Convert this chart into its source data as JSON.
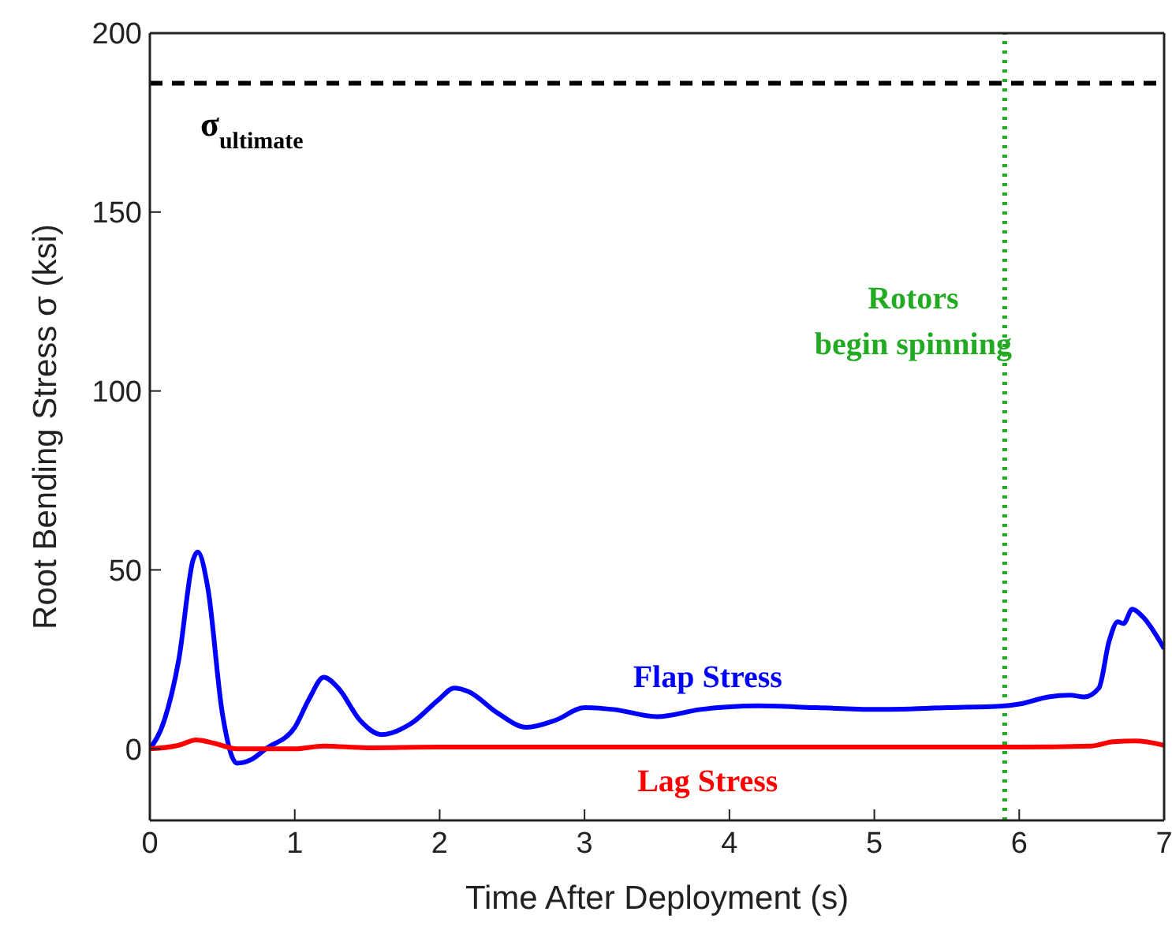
{
  "chart_data": {
    "type": "line",
    "xlabel": "Time After Deployment (s)",
    "ylabel": "Root Bending Stress σ (ksi)",
    "xlim": [
      0,
      7
    ],
    "xticks": [
      0,
      1,
      2,
      3,
      4,
      5,
      6,
      7
    ],
    "ylim": [
      -20,
      200
    ],
    "yticks": [
      0,
      50,
      100,
      150,
      200
    ],
    "marker": "none",
    "line_style": "solid",
    "series": [
      {
        "name": "Flap Stress",
        "color": "#0000ff",
        "x": [
          0,
          0.1,
          0.2,
          0.3,
          0.33,
          0.4,
          0.5,
          0.6,
          0.7,
          0.8,
          1.0,
          1.1,
          1.2,
          1.3,
          1.45,
          1.6,
          1.8,
          2.0,
          2.1,
          2.2,
          2.4,
          2.6,
          2.8,
          3.0,
          3.2,
          3.5,
          3.8,
          4.2,
          4.6,
          5.0,
          5.5,
          5.9,
          6.0,
          6.2,
          6.35,
          6.45,
          6.55,
          6.62,
          6.68,
          6.72,
          6.78,
          6.85,
          7.0
        ],
        "values": [
          0,
          8,
          25,
          53,
          55,
          45,
          10,
          -4,
          -3,
          0,
          6,
          14,
          20,
          17,
          8,
          4,
          7,
          14,
          17,
          16,
          10,
          6,
          8,
          11.5,
          11,
          9,
          11,
          12,
          11.5,
          11,
          11.5,
          12,
          12.5,
          14.5,
          15,
          14.5,
          17,
          30,
          35.5,
          35,
          39,
          37,
          28
        ]
      },
      {
        "name": "Lag Stress",
        "color": "#ff0000",
        "x": [
          0,
          0.2,
          0.32,
          0.45,
          0.6,
          1.0,
          1.2,
          1.5,
          2,
          3,
          4,
          5,
          6,
          6.5,
          6.65,
          6.8,
          7
        ],
        "values": [
          0,
          1,
          2.5,
          1.5,
          0,
          0,
          0.8,
          0.3,
          0.5,
          0.5,
          0.5,
          0.5,
          0.5,
          0.8,
          2,
          2.2,
          1
        ]
      }
    ],
    "ref_lines": [
      {
        "axis": "y",
        "value": 186,
        "label": "σ$_{ultimate}$",
        "color": "#000000",
        "line_style": "dashed"
      },
      {
        "axis": "x",
        "value": 5.9,
        "label": "Rotors\nbegin spinning",
        "color": "#22aa22",
        "line_style": "dotted"
      }
    ]
  }
}
